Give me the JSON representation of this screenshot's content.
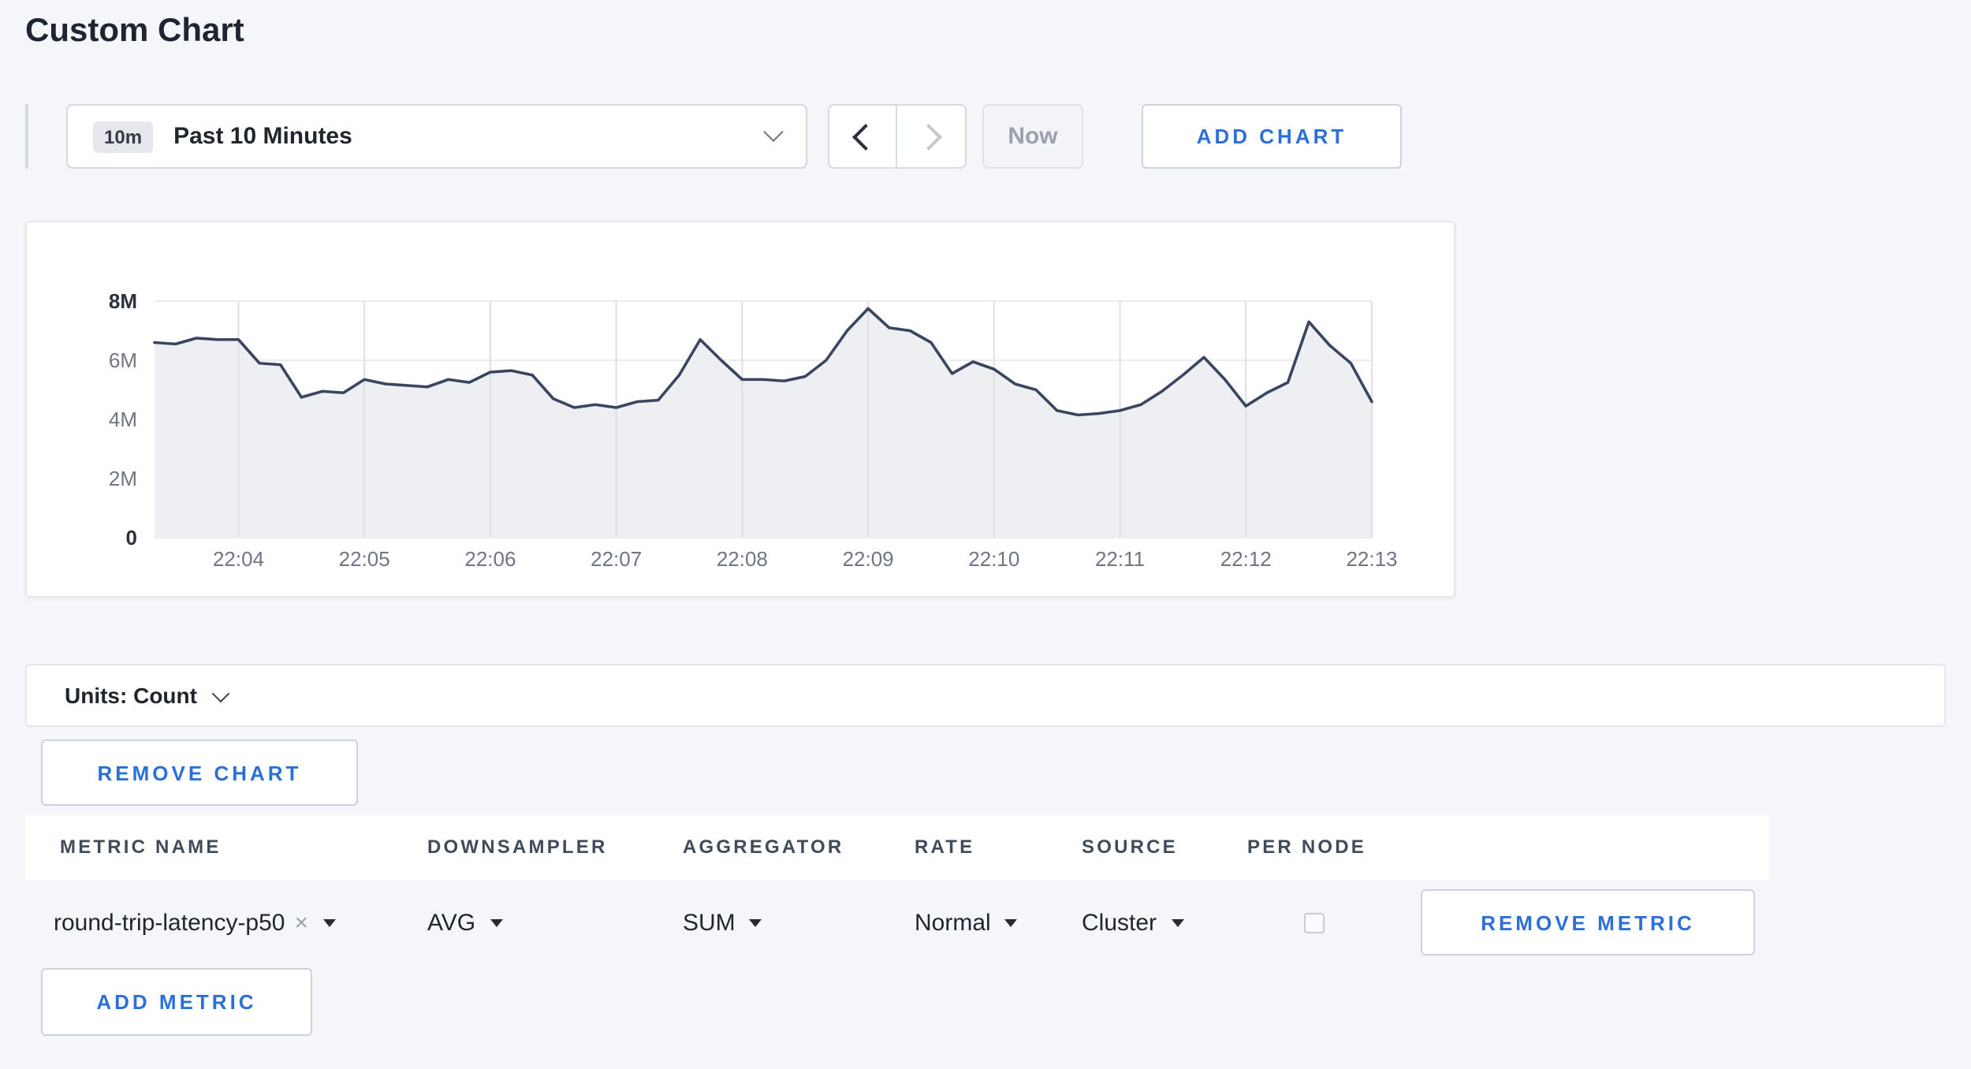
{
  "page": {
    "title": "Custom Chart"
  },
  "toolbar": {
    "time_range": {
      "badge": "10m",
      "label": "Past 10 Minutes"
    },
    "now_label": "Now",
    "add_chart_label": "ADD CHART"
  },
  "chart": {
    "units_label": "Units: Count",
    "remove_chart_label": "REMOVE CHART"
  },
  "metrics_table": {
    "headers": {
      "metric_name": "METRIC NAME",
      "downsampler": "DOWNSAMPLER",
      "aggregator": "AGGREGATOR",
      "rate": "RATE",
      "source": "SOURCE",
      "per_node": "PER NODE"
    },
    "rows": [
      {
        "metric_name": "round-trip-latency-p50",
        "clear_icon": "×",
        "downsampler": "AVG",
        "aggregator": "SUM",
        "rate": "Normal",
        "source": "Cluster",
        "per_node_checked": false,
        "remove_label": "REMOVE METRIC"
      }
    ],
    "add_metric_label": "ADD METRIC"
  },
  "colors": {
    "accent_blue": "#2b6fd9",
    "line": "#3a4560",
    "area_fill": "#edeff3",
    "grid": "#dde0e6",
    "background": "#f5f6fa"
  },
  "chart_data": {
    "type": "area",
    "title": "Custom Chart",
    "units": "count",
    "x_start": "22:03:20",
    "x_interval_seconds": 10,
    "x_ticks": [
      "22:04",
      "22:05",
      "22:06",
      "22:07",
      "22:08",
      "22:09",
      "22:10",
      "22:11",
      "22:12",
      "22:13"
    ],
    "y_ticks": [
      "0",
      "2M",
      "4M",
      "6M",
      "8M"
    ],
    "ylim": [
      0,
      8
    ],
    "series": [
      {
        "name": "round-trip-latency-p50",
        "values_millions": [
          6.6,
          6.55,
          6.75,
          6.7,
          6.7,
          5.9,
          5.85,
          4.75,
          4.95,
          4.9,
          5.35,
          5.2,
          5.15,
          5.1,
          5.35,
          5.25,
          5.6,
          5.65,
          5.5,
          4.7,
          4.4,
          4.5,
          4.4,
          4.6,
          4.65,
          5.5,
          6.7,
          6.0,
          5.35,
          5.35,
          5.3,
          5.45,
          6.0,
          7.0,
          7.75,
          7.1,
          7.0,
          6.6,
          5.55,
          5.95,
          5.7,
          5.2,
          5.0,
          4.3,
          4.15,
          4.2,
          4.3,
          4.5,
          4.95,
          5.5,
          6.1,
          5.35,
          4.45,
          4.9,
          5.25,
          7.3,
          6.5,
          5.9,
          4.6
        ]
      }
    ]
  }
}
